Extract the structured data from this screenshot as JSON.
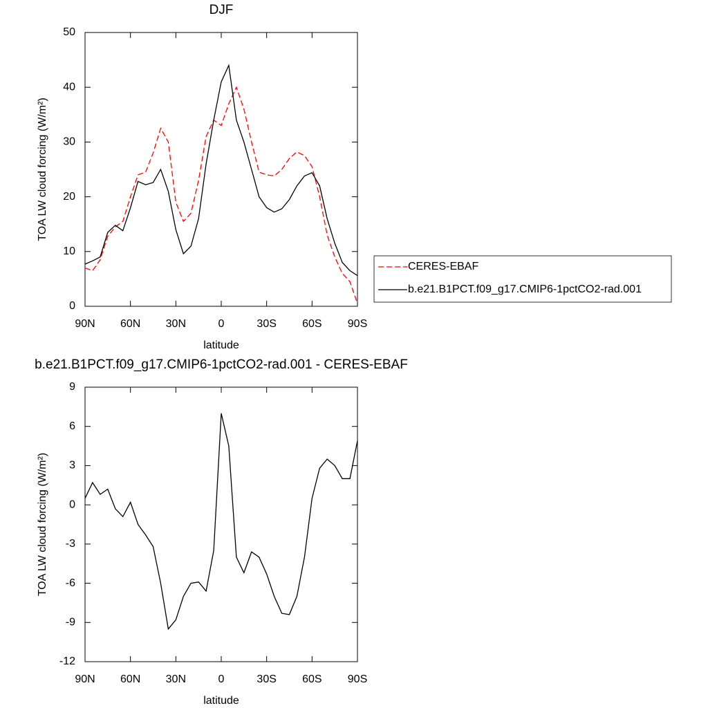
{
  "chart_data": [
    {
      "type": "line",
      "title": "DJF",
      "xlabel": "latitude",
      "ylabel": "TOA LW cloud forcing (W/m²)",
      "x": [
        90,
        85,
        80,
        75,
        70,
        65,
        60,
        55,
        50,
        45,
        40,
        35,
        30,
        25,
        20,
        15,
        10,
        5,
        0,
        -5,
        -10,
        -15,
        -20,
        -25,
        -30,
        -35,
        -40,
        -45,
        -50,
        -55,
        -60,
        -65,
        -70,
        -75,
        -80,
        -85,
        -90
      ],
      "series": [
        {
          "name": "CERES-EBAF",
          "color": "#ff0000",
          "dashed": true,
          "values": [
            7,
            6.5,
            8.5,
            12.8,
            14.5,
            15.5,
            20,
            24,
            24.5,
            28,
            32.5,
            30,
            19,
            15.5,
            17,
            23,
            31,
            34,
            33,
            37,
            40,
            36,
            30,
            24.5,
            24,
            23.8,
            25,
            27,
            28.2,
            27.5,
            25.5,
            20,
            13,
            9,
            6,
            4.5,
            0.5
          ]
        },
        {
          "name": "b.e21.B1PCT.f09_g17.CMIP6-1pctCO2-rad.001",
          "color": "#000000",
          "dashed": false,
          "values": [
            7.7,
            8.3,
            9,
            13.5,
            14.8,
            13.8,
            18,
            22.8,
            22.2,
            22.6,
            25,
            21,
            14,
            9.6,
            11,
            16,
            26,
            34,
            41,
            44,
            34,
            30,
            25,
            20,
            18,
            17.2,
            17.8,
            19.5,
            22,
            23.8,
            24.4,
            22,
            16,
            11.5,
            8,
            6.5,
            5.6
          ]
        }
      ],
      "xlim": [
        90,
        -90
      ],
      "xticks": [
        {
          "value": 90,
          "label": "90N"
        },
        {
          "value": 60,
          "label": "60N"
        },
        {
          "value": 30,
          "label": "30N"
        },
        0,
        {
          "value": -30,
          "label": "30S"
        },
        {
          "value": -60,
          "label": "60S"
        },
        {
          "value": -90,
          "label": "90S"
        }
      ],
      "ylim": [
        0,
        50
      ],
      "yticks": [
        0,
        10,
        20,
        30,
        40,
        50
      ],
      "legend": "outside-right"
    },
    {
      "type": "line",
      "title": "b.e21.B1PCT.f09_g17.CMIP6-1pctCO2-rad.001 - CERES-EBAF",
      "xlabel": "latitude",
      "ylabel": "TOA LW cloud forcing (W/m²)",
      "x": [
        90,
        85,
        80,
        75,
        70,
        65,
        60,
        55,
        50,
        45,
        40,
        35,
        30,
        25,
        20,
        15,
        10,
        5,
        0,
        -5,
        -10,
        -15,
        -20,
        -25,
        -30,
        -35,
        -40,
        -45,
        -50,
        -55,
        -60,
        -65,
        -70,
        -75,
        -80,
        -85,
        -90
      ],
      "values": [
        0.5,
        1.7,
        0.8,
        1.2,
        -0.3,
        -0.9,
        0.2,
        -1.5,
        -2.3,
        -3.2,
        -6,
        -9.5,
        -8.8,
        -7,
        -6,
        -5.9,
        -6.6,
        -3.5,
        7,
        4.5,
        -4,
        -5.2,
        -3.6,
        -4,
        -5.3,
        -7,
        -8.3,
        -8.4,
        -7,
        -4,
        0.5,
        2.8,
        3.5,
        3,
        2,
        2,
        4.9
      ],
      "color": "#000000",
      "xlim": [
        90,
        -90
      ],
      "xticks": [
        {
          "value": 90,
          "label": "90N"
        },
        {
          "value": 60,
          "label": "60N"
        },
        {
          "value": 30,
          "label": "30N"
        },
        0,
        {
          "value": -30,
          "label": "30S"
        },
        {
          "value": -60,
          "label": "60S"
        },
        {
          "value": -90,
          "label": "90S"
        }
      ],
      "ylim": [
        -12,
        9
      ],
      "yticks": [
        -12,
        -9,
        -6,
        -3,
        0,
        3,
        6,
        9
      ]
    }
  ]
}
